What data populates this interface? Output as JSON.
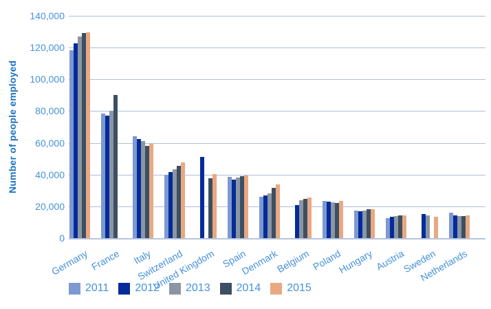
{
  "chart_data": {
    "type": "bar",
    "title": "",
    "xlabel": "",
    "ylabel": "Number of people employed",
    "ylim": [
      0,
      140000
    ],
    "grid": "horizontal",
    "legend_position": "bottom",
    "y_ticks": [
      0,
      20000,
      40000,
      60000,
      80000,
      100000,
      120000,
      140000
    ],
    "y_tick_labels": [
      "0",
      "20,000",
      "40,000",
      "60,000",
      "80,000",
      "100,000",
      "120,000",
      "140,000"
    ],
    "categories": [
      "Germany",
      "France",
      "Italy",
      "Switzerland",
      "United Kingdom",
      "Spain",
      "Denmark",
      "Belgium",
      "Poland",
      "Hungary",
      "Austria",
      "Sweden",
      "Netherlands"
    ],
    "series": [
      {
        "name": "2011",
        "color": "#7E99CF",
        "values": [
          118500,
          78500,
          64000,
          40000,
          null,
          38500,
          26000,
          null,
          23500,
          17500,
          12500,
          null,
          16000
        ]
      },
      {
        "name": "2012",
        "color": "#032B9B",
        "values": [
          122500,
          77000,
          62500,
          41500,
          51000,
          37000,
          27000,
          21000,
          23000,
          17000,
          13500,
          15000,
          14500
        ]
      },
      {
        "name": "2013",
        "color": "#8C96A2",
        "values": [
          127000,
          80000,
          61000,
          43500,
          null,
          38000,
          28000,
          24000,
          22500,
          17500,
          14000,
          14500,
          14000
        ]
      },
      {
        "name": "2014",
        "color": "#3C4F63",
        "values": [
          129000,
          90000,
          58000,
          45500,
          37500,
          39000,
          31500,
          24500,
          22000,
          18000,
          14500,
          null,
          14000
        ]
      },
      {
        "name": "2015",
        "color": "#E9A882",
        "values": [
          129500,
          null,
          59500,
          47500,
          40500,
          39500,
          34000,
          25500,
          23500,
          18000,
          14500,
          13500,
          14500
        ]
      }
    ],
    "style": {
      "gridline_color": "#AEBEDD",
      "axis_line_color": "#B7C4DF",
      "tick_text_color": "#4591DB",
      "axis_title_color": "#1A73BE"
    }
  }
}
